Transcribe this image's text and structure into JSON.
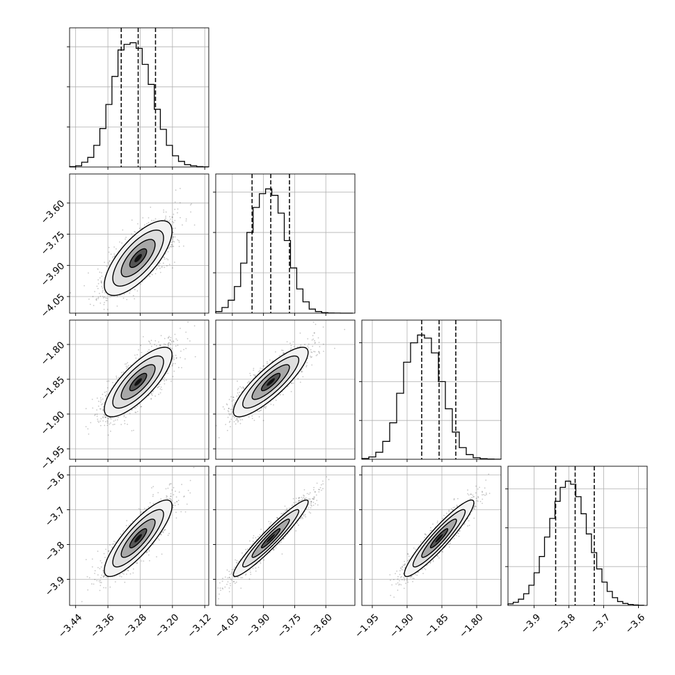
{
  "chart_data": {
    "type": "corner",
    "grid": true,
    "variables": [
      {
        "range": [
          -3.455,
          -3.11
        ],
        "ticks": [
          -3.44,
          -3.36,
          -3.28,
          -3.2,
          -3.12
        ],
        "tick_labels": [
          "−3.44",
          "−3.36",
          "−3.28",
          "−3.20",
          "−3.12"
        ],
        "mean": -3.285,
        "sd": 0.042,
        "quantiles": [
          -3.327,
          -3.285,
          -3.242
        ],
        "hist_peak_count": 1550,
        "hist_ticks": [
          500,
          1000,
          1500
        ],
        "hist_bin_edges": [
          -3.455,
          -3.44,
          -3.425,
          -3.41,
          -3.395,
          -3.38,
          -3.365,
          -3.35,
          -3.335,
          -3.32,
          -3.305,
          -3.29,
          -3.275,
          -3.26,
          -3.245,
          -3.23,
          -3.215,
          -3.2,
          -3.185,
          -3.17,
          -3.155,
          -3.14,
          -3.125,
          -3.11
        ],
        "hist_counts": [
          5,
          15,
          60,
          120,
          270,
          480,
          780,
          1130,
          1460,
          1530,
          1550,
          1480,
          1280,
          1030,
          720,
          470,
          270,
          140,
          70,
          30,
          15,
          5,
          2
        ]
      },
      {
        "range": [
          -4.13,
          -3.46
        ],
        "ticks": [
          -4.05,
          -3.9,
          -3.75,
          -3.6
        ],
        "tick_labels": [
          "−4.05",
          "−3.90",
          "−3.75",
          "−3.60"
        ],
        "mean": -3.865,
        "sd": 0.09,
        "quantiles": [
          -3.955,
          -3.865,
          -3.775
        ],
        "hist_peak_count": 1540,
        "hist_ticks": [
          500,
          1000,
          1500
        ],
        "hist_bin_edges": [
          -4.13,
          -4.1,
          -4.07,
          -4.04,
          -4.01,
          -3.98,
          -3.95,
          -3.92,
          -3.89,
          -3.86,
          -3.83,
          -3.8,
          -3.77,
          -3.74,
          -3.71,
          -3.68,
          -3.65,
          -3.62,
          -3.59,
          -3.56,
          -3.53,
          -3.5,
          -3.47
        ],
        "hist_counts": [
          20,
          70,
          160,
          330,
          620,
          1000,
          1310,
          1480,
          1540,
          1460,
          1240,
          900,
          560,
          300,
          140,
          50,
          20,
          6,
          2,
          1,
          0,
          0
        ]
      },
      {
        "range": [
          -1.965,
          -1.765
        ],
        "ticks": [
          -1.95,
          -1.9,
          -1.85,
          -1.8
        ],
        "tick_labels": [
          "−1.95",
          "−1.90",
          "−1.85",
          "−1.80"
        ],
        "mean": -1.854,
        "sd": 0.025,
        "quantiles": [
          -1.879,
          -1.854,
          -1.83
        ],
        "hist_peak_count": 1600,
        "hist_ticks": [
          500,
          1000,
          1500
        ],
        "hist_bin_edges": [
          -1.965,
          -1.955,
          -1.945,
          -1.935,
          -1.925,
          -1.915,
          -1.905,
          -1.895,
          -1.885,
          -1.875,
          -1.865,
          -1.855,
          -1.845,
          -1.835,
          -1.825,
          -1.815,
          -1.805,
          -1.795,
          -1.785,
          -1.775,
          -1.765
        ],
        "hist_counts": [
          10,
          30,
          90,
          230,
          470,
          850,
          1250,
          1500,
          1600,
          1560,
          1370,
          1000,
          650,
          350,
          150,
          60,
          20,
          8,
          3,
          1
        ]
      },
      {
        "range": [
          -3.975,
          -3.575
        ],
        "ticks": [
          -3.9,
          -3.8,
          -3.7,
          -3.6
        ],
        "tick_labels": [
          "−3.9",
          "−3.8",
          "−3.7",
          "−3.6"
        ],
        "mean": -3.782,
        "sd": 0.055,
        "quantiles": [
          -3.838,
          -3.782,
          -3.727
        ],
        "hist_peak_count": 1600,
        "hist_ticks": [
          500,
          1000,
          1500
        ],
        "hist_bin_edges": [
          -3.975,
          -3.96,
          -3.945,
          -3.93,
          -3.915,
          -3.9,
          -3.885,
          -3.87,
          -3.855,
          -3.84,
          -3.825,
          -3.81,
          -3.795,
          -3.78,
          -3.765,
          -3.75,
          -3.735,
          -3.72,
          -3.705,
          -3.69,
          -3.675,
          -3.66,
          -3.645,
          -3.63,
          -3.615,
          -3.6,
          -3.585
        ],
        "hist_counts": [
          20,
          40,
          80,
          150,
          260,
          420,
          630,
          880,
          1120,
          1340,
          1520,
          1600,
          1560,
          1400,
          1180,
          920,
          680,
          470,
          300,
          180,
          100,
          50,
          25,
          12,
          5,
          2
        ]
      }
    ],
    "correlations": [
      [
        1,
        0.72,
        0.78,
        0.84
      ],
      [
        0.72,
        1,
        0.85,
        0.95
      ],
      [
        0.78,
        0.85,
        1,
        0.93
      ],
      [
        0.84,
        0.95,
        0.93,
        1
      ]
    ],
    "contour_levels_sigma": [
      0.5,
      1,
      1.5,
      2
    ]
  }
}
